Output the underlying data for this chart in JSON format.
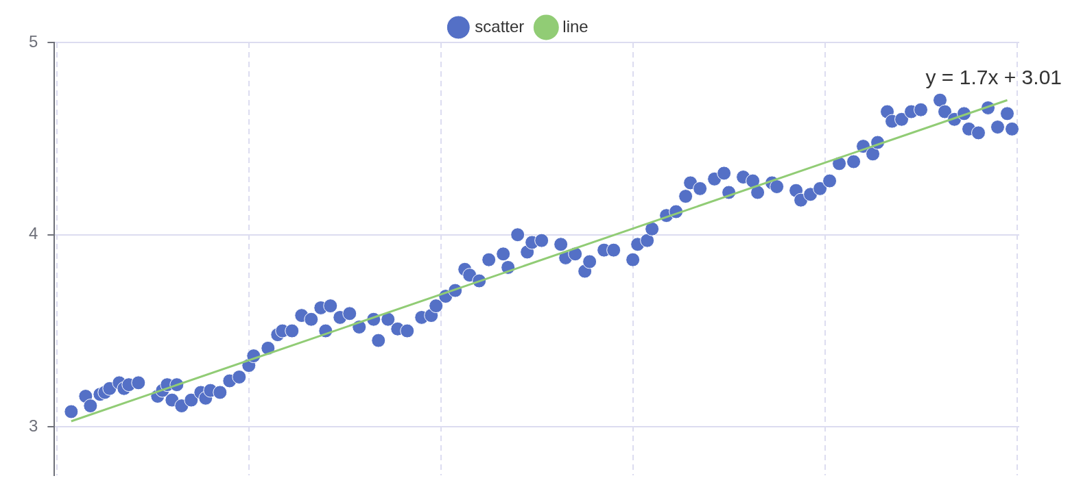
{
  "chart_data": {
    "type": "scatter",
    "categories": [
      null,
      null,
      null,
      null,
      null,
      null,
      null,
      null,
      null,
      null,
      null,
      null,
      null,
      null,
      null,
      null,
      null,
      null,
      null,
      null,
      null,
      null,
      null,
      null,
      null,
      null,
      null,
      null,
      null,
      null,
      null,
      null,
      null,
      null,
      null,
      null,
      null,
      null,
      null,
      null,
      null,
      null,
      null,
      null,
      null,
      null,
      null,
      null,
      null,
      null,
      null,
      null,
      null,
      null,
      null,
      null,
      null,
      null,
      null,
      null,
      null,
      null,
      null,
      null,
      null,
      null,
      null,
      null,
      null,
      null,
      null,
      null,
      null,
      null,
      null,
      null,
      null,
      null,
      null,
      null,
      null,
      null,
      null,
      null,
      null,
      null,
      null,
      null,
      null,
      null,
      null,
      null,
      null,
      null,
      null,
      null,
      null,
      null,
      null,
      null,
      null,
      null,
      null,
      null,
      null,
      null,
      null,
      null,
      null,
      null,
      null,
      null,
      null,
      null,
      null,
      null,
      null,
      null,
      null,
      null,
      null,
      null,
      null,
      null,
      null,
      null,
      null,
      null,
      null,
      null,
      null,
      null,
      null,
      null,
      null,
      null,
      null,
      null,
      null,
      null,
      null,
      null,
      null,
      null,
      null,
      null,
      null,
      null,
      null,
      null,
      null,
      null,
      null,
      null,
      null,
      null,
      null,
      null,
      null,
      null,
      null,
      null,
      null,
      null,
      null,
      null,
      null,
      null,
      null,
      null,
      null,
      null,
      null,
      null,
      null,
      null,
      null,
      null,
      null,
      null,
      null,
      null,
      null,
      null,
      null,
      null,
      null,
      null,
      null,
      null,
      null,
      null,
      null,
      null,
      null,
      null,
      null,
      null,
      null,
      null,
      null
    ],
    "ylim": [
      2.75,
      5
    ],
    "yticks": [
      3,
      4,
      5
    ],
    "tick_labels": "y",
    "grid": true,
    "legend": "top",
    "annotations": [
      "y = 1.7x + 3.01"
    ],
    "series": [
      {
        "name": "scatter",
        "marker": "circle",
        "color": "#5470c6",
        "values": [
          null,
          null,
          null,
          3.08,
          null,
          null,
          3.16,
          3.11,
          null,
          3.17,
          3.18,
          3.2,
          null,
          3.23,
          3.2,
          3.22,
          null,
          3.23,
          null,
          null,
          null,
          3.16,
          3.19,
          3.22,
          3.14,
          3.22,
          3.11,
          null,
          3.14,
          null,
          3.18,
          3.15,
          3.19,
          null,
          3.18,
          null,
          3.24,
          null,
          3.26,
          null,
          3.32,
          3.37,
          null,
          null,
          3.41,
          null,
          3.48,
          3.5,
          null,
          3.5,
          null,
          3.58,
          null,
          3.56,
          null,
          3.62,
          3.5,
          3.63,
          null,
          3.57,
          null,
          3.59,
          null,
          3.52,
          null,
          null,
          3.56,
          3.45,
          null,
          3.56,
          null,
          3.51,
          null,
          3.5,
          null,
          null,
          3.57,
          null,
          3.58,
          3.63,
          null,
          3.68,
          null,
          3.71,
          null,
          3.82,
          3.79,
          null,
          3.76,
          null,
          3.87,
          null,
          null,
          3.9,
          3.83,
          null,
          4.0,
          null,
          3.91,
          3.96,
          null,
          3.97,
          null,
          null,
          null,
          3.95,
          3.88,
          null,
          3.9,
          null,
          3.81,
          3.86,
          null,
          null,
          3.92,
          null,
          3.92,
          null,
          null,
          null,
          3.87,
          3.95,
          null,
          3.97,
          4.03,
          null,
          null,
          4.1,
          null,
          4.12,
          null,
          4.2,
          4.27,
          null,
          4.24,
          null,
          null,
          4.29,
          null,
          4.32,
          4.22,
          null,
          null,
          4.3,
          null,
          4.28,
          4.22,
          null,
          null,
          4.27,
          4.25,
          null,
          null,
          null,
          4.23,
          4.18,
          null,
          4.21,
          null,
          4.24,
          null,
          4.28,
          null,
          4.37,
          null,
          null,
          4.38,
          null,
          4.46,
          null,
          4.42,
          4.48,
          null,
          4.64,
          4.59,
          null,
          4.6,
          null,
          4.64,
          null,
          4.65,
          null,
          null,
          null,
          4.7,
          4.64,
          null,
          4.6,
          null,
          4.63,
          4.55,
          null,
          4.53,
          null,
          4.66,
          null,
          4.56,
          null,
          4.63,
          4.55,
          null
        ]
      },
      {
        "name": "line",
        "type": "line",
        "marker": "none",
        "color": "#91cc75",
        "values": [
          null,
          null,
          null,
          3.03,
          null,
          null,
          null,
          null,
          null,
          null,
          null,
          null,
          null,
          null,
          null,
          null,
          null,
          null,
          null,
          null,
          null,
          null,
          null,
          null,
          null,
          null,
          null,
          null,
          null,
          null,
          null,
          null,
          null,
          null,
          null,
          null,
          null,
          null,
          null,
          null,
          null,
          null,
          null,
          null,
          null,
          null,
          null,
          null,
          null,
          null,
          null,
          null,
          null,
          null,
          null,
          null,
          null,
          null,
          null,
          null,
          null,
          null,
          null,
          null,
          null,
          null,
          null,
          null,
          null,
          null,
          null,
          null,
          null,
          null,
          null,
          null,
          null,
          null,
          null,
          null,
          null,
          null,
          null,
          null,
          null,
          null,
          null,
          null,
          null,
          null,
          null,
          null,
          null,
          null,
          null,
          null,
          null,
          null,
          null,
          null,
          null,
          null,
          null,
          null,
          null,
          null,
          null,
          null,
          null,
          null,
          null,
          null,
          null,
          null,
          null,
          null,
          null,
          null,
          null,
          null,
          null,
          null,
          null,
          null,
          null,
          null,
          null,
          null,
          null,
          null,
          null,
          null,
          null,
          null,
          null,
          null,
          null,
          null,
          null,
          null,
          null,
          null,
          null,
          null,
          null,
          null,
          null,
          null,
          null,
          null,
          null,
          null,
          null,
          null,
          null,
          null,
          null,
          null,
          null,
          null,
          null,
          null,
          null,
          null,
          null,
          null,
          null,
          null,
          null,
          null,
          null,
          null,
          null,
          null,
          null,
          null,
          null,
          null,
          null,
          null,
          null,
          null,
          null,
          null,
          null,
          null,
          null,
          null,
          null,
          null,
          null,
          null,
          null,
          null,
          null,
          null,
          null,
          null,
          4.7,
          null,
          null
        ]
      }
    ]
  }
}
